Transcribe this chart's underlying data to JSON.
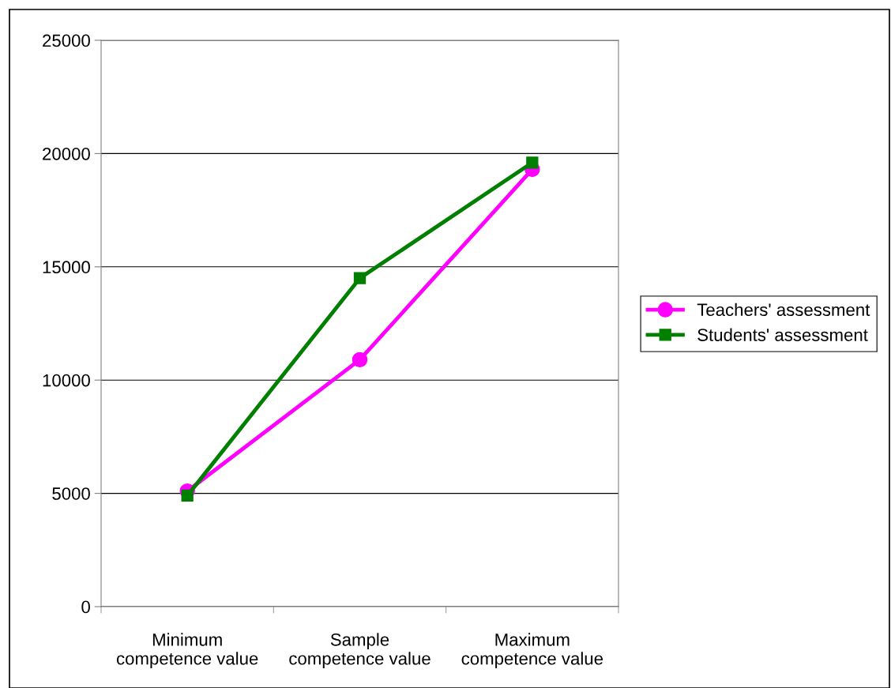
{
  "chart_data": {
    "type": "line",
    "categories": [
      "Minimum\ncompetence value",
      "Sample\ncompetence value",
      "Maximum\ncompetence value"
    ],
    "series": [
      {
        "name": "Teachers' assessment",
        "color": "#ff00ff",
        "values": [
          5100,
          10900,
          19300
        ],
        "marker": "circle"
      },
      {
        "name": "Students' assessment",
        "color": "#007f00",
        "values": [
          4900,
          14500,
          19600
        ],
        "marker": "square"
      }
    ],
    "ylim": [
      0,
      25000
    ],
    "yticks": [
      0,
      5000,
      10000,
      15000,
      20000,
      25000
    ],
    "grid": "y",
    "legend": "right",
    "line_style": "solid"
  }
}
